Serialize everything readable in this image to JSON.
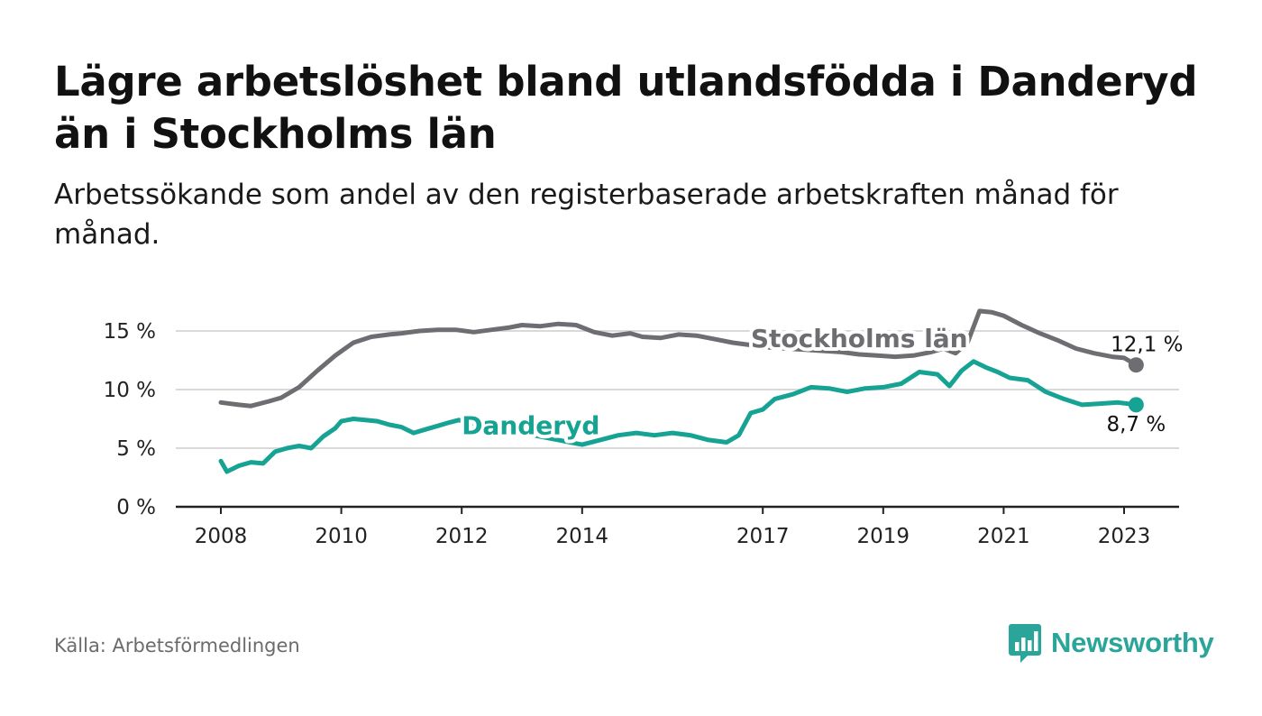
{
  "title": "Lägre arbetslöshet bland utlandsfödda i Danderyd än i Stockholms län",
  "subtitle": "Arbetssökande som andel av den registerbaserade arbetskraften månad för månad.",
  "source": "Källa: Arbetsförmedlingen",
  "brand": "Newsworthy",
  "colors": {
    "stockholm": "#6e6d72",
    "danderyd": "#16a394",
    "grid": "#d9d9d9",
    "axis": "#222222"
  },
  "chart_data": {
    "type": "line",
    "title": "Lägre arbetslöshet bland utlandsfödda i Danderyd än i Stockholms län",
    "xlabel": "",
    "ylabel": "",
    "x_range": [
      2007.3,
      2024.0
    ],
    "ylim": [
      0,
      15
    ],
    "yticks": [
      0,
      5,
      10,
      15
    ],
    "ytick_labels": [
      "0 %",
      "5 %",
      "10 %",
      "15 %"
    ],
    "xticks": [
      2008,
      2010,
      2012,
      2014,
      2017,
      2019,
      2021,
      2023
    ],
    "xtick_labels": [
      "2008",
      "2010",
      "2012",
      "2014",
      "2017",
      "2019",
      "2021",
      "2023"
    ],
    "grid": true,
    "series": [
      {
        "name": "Stockholms län",
        "label_value": "12,1 %",
        "end_value": 12.1,
        "x": [
          2008.0,
          2008.3,
          2008.5,
          2008.8,
          2009.0,
          2009.3,
          2009.6,
          2009.9,
          2010.2,
          2010.5,
          2010.8,
          2011.0,
          2011.3,
          2011.6,
          2011.9,
          2012.2,
          2012.5,
          2012.8,
          2013.0,
          2013.3,
          2013.6,
          2013.9,
          2014.2,
          2014.5,
          2014.8,
          2015.0,
          2015.3,
          2015.6,
          2015.9,
          2016.2,
          2016.5,
          2016.8,
          2017.1,
          2017.4,
          2017.7,
          2018.0,
          2018.3,
          2018.6,
          2018.9,
          2019.2,
          2019.5,
          2019.8,
          2020.0,
          2020.2,
          2020.4,
          2020.6,
          2020.8,
          2021.0,
          2021.3,
          2021.6,
          2021.9,
          2022.2,
          2022.5,
          2022.8,
          2023.0,
          2023.2
        ],
        "values": [
          8.9,
          8.7,
          8.6,
          9.0,
          9.3,
          10.2,
          11.6,
          12.9,
          14.0,
          14.5,
          14.7,
          14.8,
          15.0,
          15.1,
          15.1,
          14.9,
          15.1,
          15.3,
          15.5,
          15.4,
          15.6,
          15.5,
          14.9,
          14.6,
          14.8,
          14.5,
          14.4,
          14.7,
          14.6,
          14.3,
          14.0,
          13.8,
          13.6,
          13.5,
          13.4,
          13.3,
          13.2,
          13.0,
          12.9,
          12.8,
          12.9,
          13.2,
          13.5,
          13.1,
          14.0,
          16.7,
          16.6,
          16.3,
          15.5,
          14.8,
          14.2,
          13.5,
          13.1,
          12.8,
          12.7,
          12.1
        ]
      },
      {
        "name": "Danderyd",
        "label_value": "8,7 %",
        "end_value": 8.7,
        "x": [
          2008.0,
          2008.1,
          2008.3,
          2008.5,
          2008.7,
          2008.9,
          2009.1,
          2009.3,
          2009.5,
          2009.7,
          2009.9,
          2010.0,
          2010.2,
          2010.4,
          2010.6,
          2010.8,
          2011.0,
          2011.2,
          2011.4,
          2011.6,
          2011.8,
          2011.95,
          2012.2,
          2012.5,
          2012.8,
          2013.1,
          2013.4,
          2013.7,
          2014.0,
          2014.3,
          2014.6,
          2014.9,
          2015.2,
          2015.5,
          2015.8,
          2016.1,
          2016.4,
          2016.6,
          2016.8,
          2017.0,
          2017.2,
          2017.5,
          2017.8,
          2018.1,
          2018.4,
          2018.7,
          2019.0,
          2019.3,
          2019.6,
          2019.9,
          2020.1,
          2020.3,
          2020.5,
          2020.7,
          2020.9,
          2021.1,
          2021.4,
          2021.7,
          2022.0,
          2022.3,
          2022.6,
          2022.9,
          2023.2
        ],
        "values": [
          3.9,
          3.0,
          3.5,
          3.8,
          3.7,
          4.7,
          5.0,
          5.2,
          5.0,
          6.0,
          6.7,
          7.3,
          7.5,
          7.4,
          7.3,
          7.0,
          6.8,
          6.3,
          6.6,
          6.9,
          7.2,
          7.4,
          7.1,
          6.9,
          6.6,
          6.2,
          5.9,
          5.6,
          5.3,
          5.7,
          6.1,
          6.3,
          6.1,
          6.3,
          6.1,
          5.7,
          5.5,
          6.1,
          8.0,
          8.3,
          9.2,
          9.6,
          10.2,
          10.1,
          9.8,
          10.1,
          10.2,
          10.5,
          11.5,
          11.3,
          10.3,
          11.6,
          12.4,
          11.9,
          11.5,
          11.0,
          10.8,
          9.8,
          9.2,
          8.7,
          8.8,
          8.9,
          8.7
        ]
      }
    ]
  }
}
